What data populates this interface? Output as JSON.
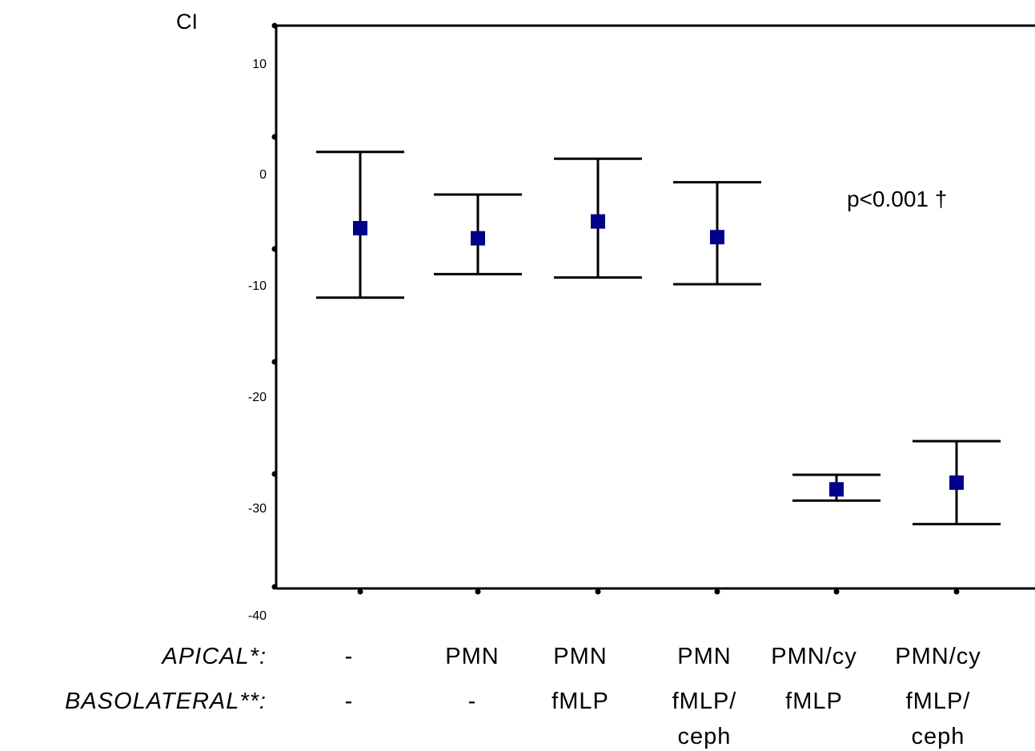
{
  "chart_data": {
    "type": "errorbar",
    "ylabel": "CI",
    "ylim": [
      -40,
      10
    ],
    "yticks": [
      "10",
      "0",
      "-10",
      "-20",
      "-30",
      "-40"
    ],
    "grid": false,
    "annotation": "p<0.001 †",
    "row_labels": [
      "APICAL*:",
      "BASOLATERAL**:"
    ],
    "categories": [
      {
        "apical": "-",
        "basolateral": [
          "-"
        ]
      },
      {
        "apical": "PMN",
        "basolateral": [
          "-"
        ]
      },
      {
        "apical": "PMN",
        "basolateral": [
          "fMLP"
        ]
      },
      {
        "apical": "PMN",
        "basolateral": [
          "fMLP/",
          "ceph"
        ]
      },
      {
        "apical": "PMN/cy",
        "basolateral": [
          "fMLP"
        ]
      },
      {
        "apical": "PMN/cy",
        "basolateral": [
          "fMLP/",
          "ceph"
        ]
      }
    ],
    "series": [
      {
        "mean": [
          -5.0,
          -5.9,
          -4.4,
          -5.8,
          -28.3,
          -27.7
        ],
        "upper": [
          1.8,
          -2.0,
          1.2,
          -0.9,
          -27.0,
          -24.0
        ],
        "lower": [
          -11.2,
          -9.1,
          -9.4,
          -10.0,
          -29.3,
          -31.4
        ]
      }
    ],
    "colors": {
      "marker": "#00008B",
      "line": "#000000"
    }
  }
}
